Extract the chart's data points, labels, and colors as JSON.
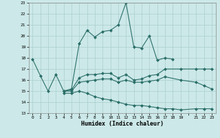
{
  "xlabel": "Humidex (Indice chaleur)",
  "xlim": [
    -0.5,
    23.5
  ],
  "ylim": [
    13,
    23
  ],
  "xticks": [
    0,
    1,
    2,
    3,
    4,
    5,
    6,
    7,
    8,
    9,
    10,
    11,
    12,
    13,
    14,
    15,
    16,
    17,
    18,
    19,
    21,
    22,
    23
  ],
  "yticks": [
    13,
    14,
    15,
    16,
    17,
    18,
    19,
    20,
    21,
    22,
    23
  ],
  "bg_color": "#cce8e8",
  "grid_color": "#aacece",
  "line_color": "#2a6e68",
  "line_width": 0.8,
  "marker": "D",
  "marker_size": 2.5,
  "series": {
    "max": {
      "x": [
        0,
        1,
        2,
        3,
        4,
        5,
        6,
        7,
        8,
        9,
        10,
        11,
        12,
        13,
        14,
        15,
        16,
        17,
        18
      ],
      "y": [
        17.9,
        16.4,
        15.0,
        16.5,
        15.0,
        15.2,
        19.3,
        20.5,
        19.9,
        20.4,
        20.5,
        21.0,
        23.0,
        19.0,
        18.9,
        20.0,
        17.8,
        18.0,
        17.9
      ]
    },
    "upper_mean": {
      "x": [
        4,
        5,
        6,
        7,
        8,
        9,
        10,
        11,
        12,
        13,
        14,
        15,
        16,
        17,
        19,
        21,
        22,
        23
      ],
      "y": [
        15.0,
        15.1,
        16.2,
        16.5,
        16.5,
        16.6,
        16.6,
        16.2,
        16.5,
        16.0,
        16.1,
        16.4,
        16.5,
        17.0,
        17.0,
        17.0,
        17.0,
        17.0
      ]
    },
    "lower_mean": {
      "x": [
        4,
        5,
        6,
        7,
        8,
        9,
        10,
        11,
        12,
        13,
        14,
        15,
        16,
        17,
        19,
        21,
        22,
        23
      ],
      "y": [
        15.0,
        15.0,
        15.8,
        15.9,
        16.0,
        16.1,
        16.1,
        15.8,
        16.0,
        15.8,
        15.8,
        15.9,
        16.0,
        16.3,
        16.0,
        15.8,
        15.5,
        15.2
      ]
    },
    "min": {
      "x": [
        4,
        5,
        6,
        7,
        8,
        9,
        10,
        11,
        12,
        13,
        14,
        15,
        16,
        17,
        18,
        19,
        21,
        22,
        23
      ],
      "y": [
        14.8,
        14.8,
        15.0,
        14.8,
        14.5,
        14.3,
        14.2,
        14.0,
        13.8,
        13.7,
        13.7,
        13.6,
        13.5,
        13.4,
        13.4,
        13.3,
        13.4,
        13.4,
        13.4
      ]
    }
  }
}
